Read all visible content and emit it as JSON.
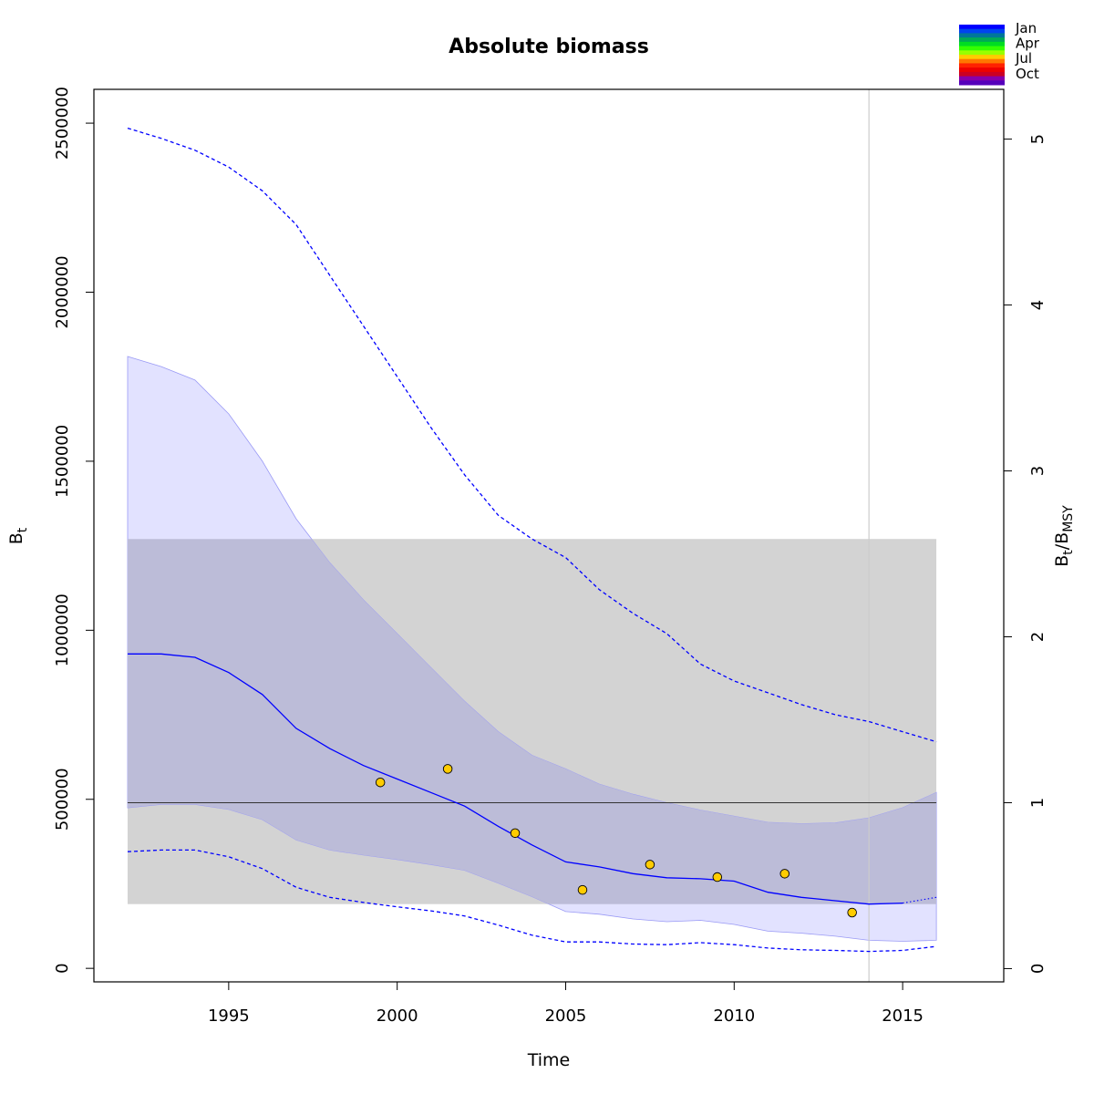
{
  "chart_data": {
    "type": "line",
    "title": "Absolute biomass",
    "xlabel": "Time",
    "ylabel": "B",
    "ylabel_sub": "t",
    "y2label_main": "B",
    "y2label_sub1": "t",
    "y2label_sep": "/B",
    "y2label_sub2": "MSY",
    "xlim": [
      1991,
      2018
    ],
    "ylim": [
      -40000,
      2600000
    ],
    "y2lim": [
      -0.08,
      5.3
    ],
    "xticks": [
      1995,
      2000,
      2005,
      2010,
      2015
    ],
    "yticks": [
      0,
      500000,
      1000000,
      1500000,
      2000000,
      2500000
    ],
    "y2ticks": [
      0,
      1,
      2,
      3,
      4,
      5
    ],
    "grid": false,
    "bmsy": 490000,
    "bmsy_band": {
      "x": [
        1992,
        2016
      ],
      "y": [
        190000,
        1270000
      ]
    },
    "vline_x": 2014,
    "series": [
      {
        "role": "estimate",
        "x": [
          1992,
          1993,
          1994,
          1995,
          1996,
          1997,
          1998,
          1999,
          2000,
          2001,
          2002,
          2003,
          2004,
          2005,
          2006,
          2007,
          2008,
          2009,
          2010,
          2011,
          2012,
          2013,
          2014,
          2015
        ],
        "y": [
          930000,
          930000,
          920000,
          875000,
          810000,
          710000,
          650000,
          600000,
          560000,
          520000,
          480000,
          420000,
          365000,
          315000,
          300000,
          280000,
          268000,
          265000,
          258000,
          225000,
          210000,
          200000,
          190000,
          193000
        ]
      },
      {
        "role": "estimate-forecast",
        "x": [
          2015,
          2016
        ],
        "y": [
          193000,
          210000
        ]
      },
      {
        "role": "upper-ci-dashed",
        "x": [
          1992,
          1993,
          1994,
          1995,
          1996,
          1997,
          1998,
          1999,
          2000,
          2001,
          2002,
          2003,
          2004,
          2005,
          2006,
          2007,
          2008,
          2009,
          2010,
          2011,
          2012,
          2013,
          2014,
          2015,
          2016
        ],
        "y": [
          2485000,
          2455000,
          2420000,
          2370000,
          2300000,
          2200000,
          2050000,
          1900000,
          1750000,
          1600000,
          1460000,
          1340000,
          1270000,
          1215000,
          1120000,
          1050000,
          990000,
          900000,
          850000,
          815000,
          780000,
          750000,
          730000,
          700000,
          670000
        ]
      },
      {
        "role": "lower-ci-dashed",
        "x": [
          1992,
          1993,
          1994,
          1995,
          1996,
          1997,
          1998,
          1999,
          2000,
          2001,
          2002,
          2003,
          2004,
          2005,
          2006,
          2007,
          2008,
          2009,
          2010,
          2011,
          2012,
          2013,
          2014,
          2015,
          2016
        ],
        "y": [
          345000,
          350000,
          350000,
          330000,
          295000,
          240000,
          210000,
          195000,
          182000,
          170000,
          155000,
          128000,
          98000,
          78000,
          78000,
          72000,
          70000,
          76000,
          70000,
          60000,
          55000,
          53000,
          50000,
          53000,
          65000
        ]
      }
    ],
    "ci_band": {
      "x": [
        1992,
        1993,
        1994,
        1995,
        1996,
        1997,
        1998,
        1999,
        2000,
        2001,
        2002,
        2003,
        2004,
        2005,
        2006,
        2007,
        2008,
        2009,
        2010,
        2011,
        2012,
        2013,
        2014,
        2015,
        2016
      ],
      "upper": [
        1810000,
        1780000,
        1740000,
        1640000,
        1500000,
        1330000,
        1200000,
        1090000,
        990000,
        890000,
        790000,
        700000,
        630000,
        590000,
        545000,
        515000,
        490000,
        468000,
        450000,
        432000,
        428000,
        430000,
        445000,
        475000,
        520000
      ],
      "lower": [
        475000,
        485000,
        485000,
        470000,
        440000,
        380000,
        350000,
        335000,
        322000,
        307000,
        290000,
        252000,
        212000,
        168000,
        160000,
        146000,
        138000,
        142000,
        130000,
        110000,
        104000,
        95000,
        83000,
        80000,
        83000
      ]
    },
    "observations": {
      "x": [
        1999.5,
        2001.5,
        2003.5,
        2005.5,
        2007.5,
        2009.5,
        2011.5,
        2013.5
      ],
      "y": [
        550000,
        590000,
        400000,
        232000,
        307000,
        270000,
        280000,
        165000
      ]
    },
    "colors": {
      "line": "#0000ff",
      "ci_fill": "#e2e2ff",
      "bmsy_band": "#d3d3d3",
      "overlap": "#bcbcd8",
      "point": "#ffcc00",
      "vline": "#cccccc"
    },
    "legend": {
      "placement": "top-right",
      "labels": [
        "Jan",
        "Apr",
        "Jul",
        "Oct"
      ],
      "colors": [
        "#0000ff",
        "#0044ee",
        "#007799",
        "#00aa55",
        "#00dd22",
        "#33ff00",
        "#99ff00",
        "#ffcc00",
        "#ff7700",
        "#ff2200",
        "#ee0000",
        "#cc0022",
        "#8800aa",
        "#5500bb"
      ]
    }
  }
}
